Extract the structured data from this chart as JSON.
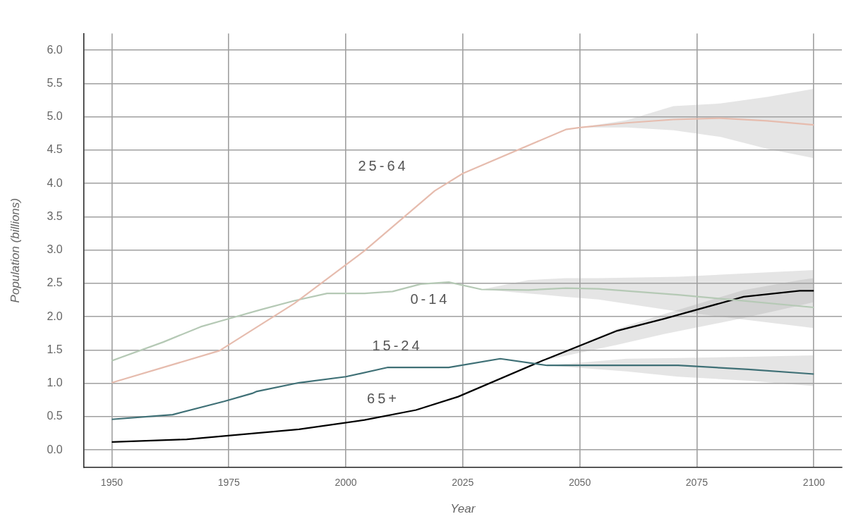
{
  "chart_data": {
    "type": "line",
    "xlabel": "Year",
    "ylabel": "Population (billions)",
    "xlim": [
      1944,
      2106
    ],
    "xticks": [
      1950,
      1975,
      2000,
      2025,
      2050,
      2075,
      2100
    ],
    "ylim": [
      -0.26,
      6.25
    ],
    "yticks": [
      {
        "value": 0,
        "label": "0.0"
      },
      0.5,
      {
        "value": 1,
        "label": "1.0"
      },
      1.5,
      {
        "value": 2,
        "label": "2.0"
      },
      2.5,
      {
        "value": 3,
        "label": "3.0"
      },
      3.5,
      {
        "value": 4,
        "label": "4.0"
      },
      4.5,
      {
        "value": 5,
        "label": "5.0"
      },
      5.5,
      {
        "value": 6,
        "label": "6.0"
      }
    ],
    "grid": true,
    "marker": "none",
    "line_style": "solid",
    "series": [
      {
        "name": "25-64",
        "color": "#e6bcae",
        "x": [
          1950,
          1973,
          1989,
          2004,
          2019,
          2025,
          2047,
          2050,
          2060,
          2070,
          2080,
          2090,
          2100
        ],
        "values": [
          1.01,
          1.49,
          2.2,
          2.99,
          3.89,
          4.15,
          4.81,
          4.84,
          4.91,
          4.96,
          4.98,
          4.94,
          4.88
        ],
        "lower": [
          null,
          null,
          null,
          null,
          null,
          null,
          null,
          4.84,
          4.84,
          4.8,
          4.7,
          4.52,
          4.38
        ],
        "upper": [
          null,
          null,
          null,
          null,
          null,
          null,
          null,
          4.84,
          4.95,
          5.16,
          5.2,
          5.3,
          5.42
        ]
      },
      {
        "name": "0-14",
        "color": "#b5c9b5",
        "x": [
          1950,
          1961,
          1969,
          1975,
          1982,
          1989,
          1996,
          2004,
          2010,
          2016,
          2022,
          2029,
          2039,
          2047,
          2054,
          2071,
          2100
        ],
        "values": [
          1.34,
          1.62,
          1.85,
          1.97,
          2.11,
          2.24,
          2.35,
          2.35,
          2.38,
          2.49,
          2.52,
          2.41,
          2.4,
          2.43,
          2.42,
          2.33,
          2.14
        ],
        "lower": [
          null,
          null,
          null,
          null,
          null,
          null,
          null,
          null,
          null,
          null,
          null,
          2.41,
          2.35,
          2.3,
          2.26,
          2.08,
          1.83
        ],
        "upper": [
          null,
          null,
          null,
          null,
          null,
          null,
          null,
          null,
          null,
          null,
          null,
          2.41,
          2.55,
          2.58,
          2.58,
          2.6,
          2.7
        ]
      },
      {
        "name": "15-24",
        "color": "#3f7076",
        "x": [
          1950,
          1963,
          1974,
          1980,
          1981,
          1990,
          2000,
          2009,
          2022,
          2033,
          2043,
          2060,
          2071,
          2086,
          2100
        ],
        "values": [
          0.46,
          0.53,
          0.73,
          0.85,
          0.88,
          1.01,
          1.1,
          1.24,
          1.24,
          1.37,
          1.27,
          1.27,
          1.27,
          1.21,
          1.14
        ],
        "lower": [
          null,
          null,
          null,
          null,
          null,
          null,
          null,
          null,
          null,
          null,
          1.27,
          1.18,
          1.1,
          1.04,
          0.96
        ],
        "upper": [
          null,
          null,
          null,
          null,
          null,
          null,
          null,
          null,
          null,
          null,
          1.27,
          1.37,
          1.38,
          1.4,
          1.42
        ]
      },
      {
        "name": "65+",
        "color": "#000000",
        "x": [
          1950,
          1966,
          1990,
          2004,
          2015,
          2024,
          2042,
          2058,
          2068,
          2085,
          2097,
          2100
        ],
        "values": [
          0.12,
          0.16,
          0.31,
          0.45,
          0.6,
          0.8,
          1.34,
          1.79,
          1.97,
          2.3,
          2.39,
          2.39
        ],
        "lower": [
          null,
          null,
          null,
          null,
          null,
          null,
          1.34,
          1.58,
          1.74,
          1.98,
          2.17,
          2.22
        ],
        "upper": [
          null,
          null,
          null,
          null,
          null,
          null,
          1.34,
          1.82,
          2.04,
          2.4,
          2.55,
          2.58
        ]
      }
    ]
  }
}
